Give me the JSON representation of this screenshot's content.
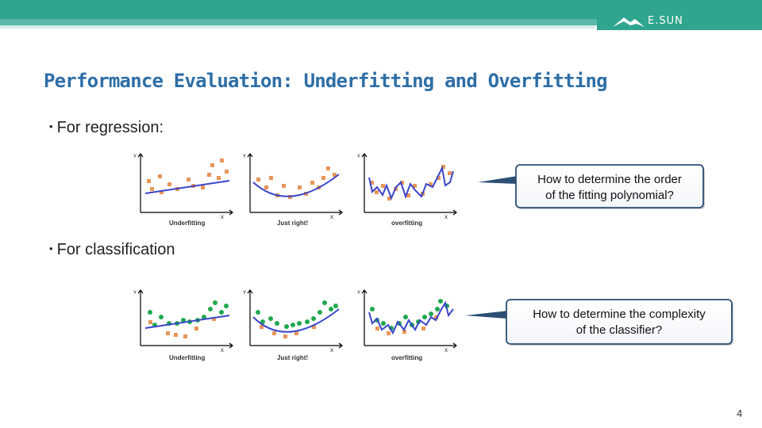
{
  "header": {
    "logo_text": "E.SUN",
    "accent": "#2fa58e"
  },
  "title": "Performance Evaluation: Underfitting and Overfitting",
  "sections": {
    "regression": {
      "bullet": "•",
      "label": "For regression:"
    },
    "classification": {
      "bullet": "•",
      "label": "For classification"
    }
  },
  "plots": {
    "regression": [
      {
        "caption": "Underfitting",
        "y": "Y",
        "x": "X"
      },
      {
        "caption": "Just right!",
        "y": "Y",
        "x": "X"
      },
      {
        "caption": "overfitting",
        "y": "Y",
        "x": "X"
      }
    ],
    "classification": [
      {
        "caption": "Underfitting",
        "y": "Y",
        "x": "X"
      },
      {
        "caption": "Just right!",
        "y": "Y",
        "x": "X"
      },
      {
        "caption": "overfitting",
        "y": "Y",
        "x": "X"
      }
    ]
  },
  "callouts": {
    "regression": {
      "line1": "How to determine the order",
      "line2": "of the fitting polynomial?"
    },
    "classification": {
      "line1": "How to determine the complexity",
      "line2": "of the classifier?"
    }
  },
  "colors": {
    "title": "#2e6ea6",
    "orange_points": "#e8955a",
    "green_points": "#1fa84f",
    "fit_line": "#3a45c8"
  },
  "page_number": "4"
}
